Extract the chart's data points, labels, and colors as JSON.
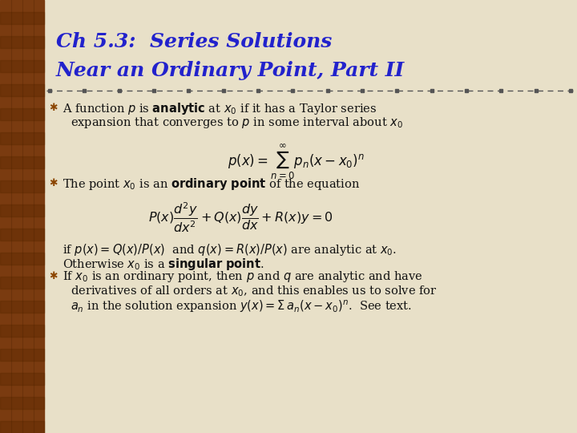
{
  "title_line1": "Ch 5.3:  Series Solutions",
  "title_line2": "Near an Ordinary Point, Part II",
  "title_color": "#2222cc",
  "bg_color": "#e8e0c8",
  "left_bar_dark": "#6B3200",
  "left_bar_mid": "#8B4500",
  "left_bar_light": "#A05010",
  "divider_color": "#666666",
  "text_color": "#111111",
  "bullet_color": "#8B4500",
  "fig_width": 7.2,
  "fig_height": 5.4,
  "dpi": 100
}
